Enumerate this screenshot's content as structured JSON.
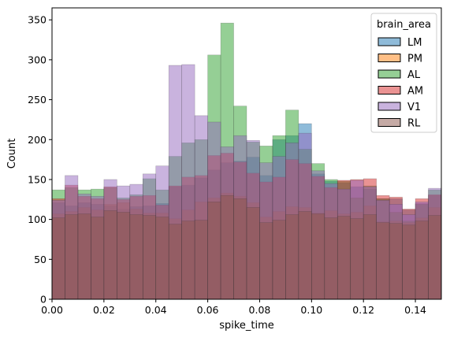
{
  "chart_data": {
    "type": "histogram",
    "xlabel": "spike_time",
    "ylabel": "Count",
    "xlim": [
      0,
      0.15
    ],
    "ylim": [
      0,
      365
    ],
    "xticks": [
      0.0,
      0.02,
      0.04,
      0.06,
      0.08,
      0.1,
      0.12,
      0.14
    ],
    "xtick_labels": [
      "0.00",
      "0.02",
      "0.04",
      "0.06",
      "0.08",
      "0.10",
      "0.12",
      "0.14"
    ],
    "yticks": [
      0,
      50,
      100,
      150,
      200,
      250,
      300,
      350
    ],
    "ytick_labels": [
      "0",
      "50",
      "100",
      "150",
      "200",
      "250",
      "300",
      "350"
    ],
    "legend": {
      "title": "brain_area",
      "placement": "upper right"
    },
    "bin_edges": [
      0,
      0.005,
      0.01,
      0.015,
      0.02,
      0.025,
      0.03,
      0.035,
      0.04,
      0.045,
      0.05,
      0.055,
      0.06,
      0.065,
      0.07,
      0.075,
      0.08,
      0.085,
      0.09,
      0.095,
      0.1,
      0.105,
      0.11,
      0.115,
      0.12,
      0.125,
      0.13,
      0.135,
      0.14,
      0.145,
      0.15
    ],
    "series": [
      {
        "name": "LM",
        "color": "#1f77b4",
        "values": [
          121,
          117,
          121,
          119,
          117,
          113,
          116,
          117,
          120,
          141,
          143,
          152,
          162,
          171,
          173,
          178,
          155,
          200,
          205,
          220,
          157,
          148,
          146,
          141,
          138,
          126,
          126,
          112,
          120,
          130
        ]
      },
      {
        "name": "PM",
        "color": "#ff7f0e",
        "values": [
          107,
          110,
          115,
          112,
          119,
          121,
          113,
          108,
          108,
          101,
          112,
          122,
          127,
          133,
          129,
          121,
          103,
          110,
          116,
          115,
          108,
          111,
          107,
          109,
          117,
          97,
          98,
          96,
          102,
          115
        ]
      },
      {
        "name": "AL",
        "color": "#2ca02c",
        "values": [
          137,
          140,
          137,
          138,
          140,
          127,
          131,
          151,
          137,
          179,
          196,
          200,
          306,
          346,
          242,
          197,
          192,
          205,
          237,
          188,
          170,
          150,
          148,
          127,
          142,
          126,
          109,
          98,
          119,
          137
        ]
      },
      {
        "name": "AM",
        "color": "#d62728",
        "values": [
          126,
          143,
          129,
          126,
          141,
          125,
          129,
          130,
          118,
          142,
          153,
          155,
          180,
          183,
          172,
          158,
          147,
          153,
          175,
          170,
          154,
          140,
          149,
          150,
          151,
          130,
          128,
          113,
          126,
          131
        ]
      },
      {
        "name": "V1",
        "color": "#9467bd",
        "values": [
          124,
          155,
          132,
          129,
          150,
          142,
          144,
          157,
          167,
          293,
          294,
          230,
          222,
          191,
          205,
          199,
          171,
          179,
          196,
          208,
          161,
          145,
          138,
          149,
          141,
          124,
          119,
          106,
          122,
          139
        ]
      },
      {
        "name": "RL",
        "color": "#8c564b",
        "values": [
          102,
          106,
          107,
          103,
          111,
          109,
          106,
          105,
          103,
          94,
          98,
          99,
          122,
          130,
          126,
          115,
          96,
          99,
          106,
          110,
          107,
          102,
          104,
          101,
          106,
          96,
          95,
          93,
          98,
          105
        ]
      }
    ]
  }
}
